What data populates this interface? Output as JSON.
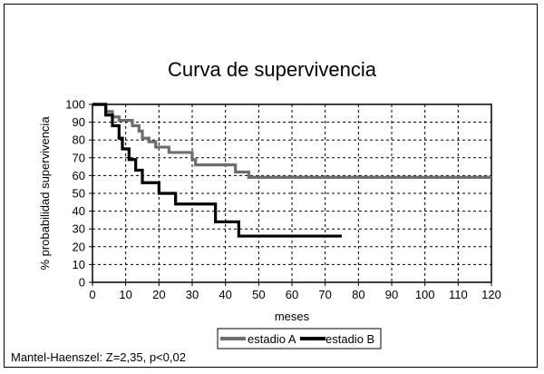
{
  "chart_data": {
    "type": "line",
    "title": "Curva de supervivencia",
    "xlabel": "meses",
    "ylabel": "% probabilidad supervivencia",
    "xlim": [
      0,
      120
    ],
    "ylim": [
      0,
      100
    ],
    "x_ticks": [
      0,
      10,
      20,
      30,
      40,
      50,
      60,
      70,
      80,
      90,
      100,
      110,
      120
    ],
    "y_ticks": [
      0,
      10,
      20,
      30,
      40,
      50,
      60,
      70,
      80,
      90,
      100
    ],
    "grid": true,
    "legend_position": "bottom",
    "step": true,
    "series": [
      {
        "name": "estadio A",
        "color": "#6e6e6e",
        "points": [
          [
            0,
            100
          ],
          [
            4,
            100
          ],
          [
            4,
            96
          ],
          [
            6,
            96
          ],
          [
            6,
            93
          ],
          [
            8,
            93
          ],
          [
            8,
            91
          ],
          [
            12,
            91
          ],
          [
            12,
            88
          ],
          [
            14,
            88
          ],
          [
            14,
            85
          ],
          [
            15,
            85
          ],
          [
            15,
            81
          ],
          [
            17,
            81
          ],
          [
            17,
            79
          ],
          [
            19,
            79
          ],
          [
            19,
            76
          ],
          [
            23,
            76
          ],
          [
            23,
            73
          ],
          [
            30,
            73
          ],
          [
            30,
            69
          ],
          [
            31,
            69
          ],
          [
            31,
            66
          ],
          [
            43,
            66
          ],
          [
            43,
            62
          ],
          [
            47,
            62
          ],
          [
            47,
            59
          ],
          [
            120,
            59
          ]
        ]
      },
      {
        "name": "estadio B",
        "color": "#000000",
        "points": [
          [
            0,
            100
          ],
          [
            4,
            100
          ],
          [
            4,
            94
          ],
          [
            6,
            94
          ],
          [
            6,
            88
          ],
          [
            8,
            88
          ],
          [
            8,
            81
          ],
          [
            9,
            81
          ],
          [
            9,
            75
          ],
          [
            11,
            75
          ],
          [
            11,
            69
          ],
          [
            13,
            69
          ],
          [
            13,
            63
          ],
          [
            15,
            63
          ],
          [
            15,
            56
          ],
          [
            20,
            56
          ],
          [
            20,
            50
          ],
          [
            25,
            50
          ],
          [
            25,
            44
          ],
          [
            37,
            44
          ],
          [
            37,
            34
          ],
          [
            44,
            34
          ],
          [
            44,
            26
          ],
          [
            75,
            26
          ]
        ]
      }
    ]
  },
  "footnote": "Mantel-Haenszel: Z=2,35, p<0,02"
}
